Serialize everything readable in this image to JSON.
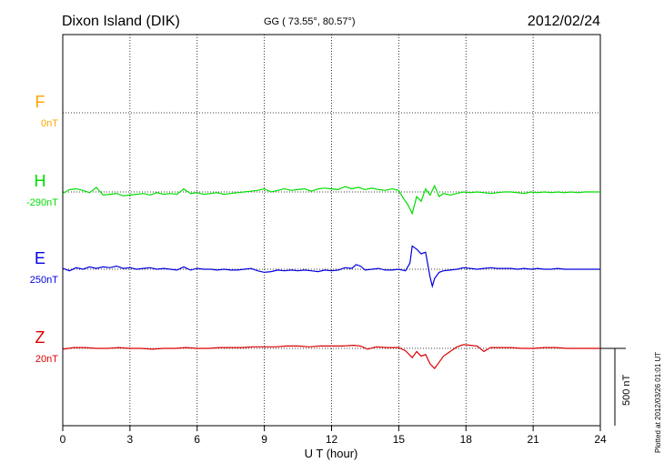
{
  "chart_data": {
    "type": "line",
    "title": "Dixon Island (DIK)",
    "coords": "GG ( 73.55°,  80.57°)",
    "date": "2012/02/24",
    "xlabel": "U T (hour)",
    "xlim": [
      0,
      24
    ],
    "xticks": [
      "0",
      "3",
      "6",
      "9",
      "12",
      "15",
      "18",
      "21",
      "24"
    ],
    "grid": true,
    "scale_label": "500 nT",
    "plotted_note": "Plotted at 2012/03/26 01:01 UT",
    "series": [
      {
        "name": "F",
        "offset_label": "0nT",
        "color": "#ffa500",
        "x": [],
        "y": []
      },
      {
        "name": "H",
        "offset_label": "-290nT",
        "color": "#00dd00",
        "x": [
          0,
          0.3,
          0.6,
          0.9,
          1.2,
          1.5,
          1.8,
          2.1,
          2.4,
          2.7,
          3.0,
          3.3,
          3.6,
          3.9,
          4.2,
          4.5,
          4.8,
          5.1,
          5.4,
          5.7,
          6.0,
          6.3,
          6.6,
          6.9,
          7.2,
          7.5,
          7.8,
          8.1,
          8.4,
          8.7,
          9.0,
          9.3,
          9.6,
          9.9,
          10.2,
          10.5,
          10.8,
          11.1,
          11.4,
          11.7,
          12.0,
          12.3,
          12.6,
          12.9,
          13.2,
          13.5,
          13.8,
          14.1,
          14.4,
          14.7,
          15.0,
          15.2,
          15.4,
          15.6,
          15.8,
          16.0,
          16.2,
          16.4,
          16.6,
          16.8,
          17.0,
          17.3,
          17.6,
          17.9,
          18.2,
          18.5,
          18.8,
          19.1,
          19.4,
          19.7,
          20.0,
          20.3,
          20.6,
          20.9,
          21.2,
          21.5,
          21.8,
          22.1,
          22.4,
          22.7,
          23.0,
          23.3,
          23.6,
          24.0
        ],
        "y": [
          -10,
          15,
          20,
          10,
          -5,
          30,
          -20,
          -15,
          -10,
          -25,
          -20,
          -15,
          -10,
          -20,
          -5,
          -15,
          -10,
          -15,
          20,
          -10,
          -5,
          -15,
          -10,
          -5,
          -15,
          -10,
          -5,
          0,
          5,
          10,
          20,
          0,
          10,
          20,
          10,
          15,
          20,
          5,
          20,
          25,
          20,
          15,
          35,
          20,
          30,
          15,
          25,
          15,
          10,
          20,
          10,
          -40,
          -80,
          -140,
          -30,
          -60,
          20,
          -20,
          40,
          -30,
          -10,
          -20,
          -10,
          0,
          -5,
          0,
          -5,
          -10,
          -5,
          0,
          0,
          -5,
          -10,
          0,
          -5,
          0,
          -5,
          0,
          -5,
          0,
          -5,
          0,
          0,
          0
        ]
      },
      {
        "name": "E",
        "offset_label": "250nT",
        "color": "#0000dd",
        "x": [
          0,
          0.3,
          0.6,
          0.9,
          1.2,
          1.5,
          1.8,
          2.1,
          2.4,
          2.7,
          3.0,
          3.3,
          3.6,
          3.9,
          4.2,
          4.5,
          4.8,
          5.1,
          5.4,
          5.7,
          6.0,
          6.3,
          6.6,
          6.9,
          7.2,
          7.5,
          7.8,
          8.1,
          8.4,
          8.7,
          9.0,
          9.3,
          9.6,
          9.9,
          10.2,
          10.5,
          10.8,
          11.1,
          11.4,
          11.7,
          12.0,
          12.3,
          12.6,
          12.9,
          13.1,
          13.3,
          13.5,
          13.8,
          14.1,
          14.4,
          14.7,
          15.0,
          15.3,
          15.5,
          15.6,
          15.8,
          16.0,
          16.2,
          16.4,
          16.5,
          16.6,
          16.8,
          17.0,
          17.3,
          17.6,
          17.9,
          18.2,
          18.5,
          18.8,
          19.1,
          19.4,
          19.7,
          20.0,
          20.3,
          20.6,
          20.9,
          21.2,
          21.5,
          21.8,
          22.1,
          22.4,
          22.7,
          23.0,
          23.3,
          23.6,
          24.0
        ],
        "y": [
          5,
          -10,
          10,
          0,
          15,
          5,
          15,
          10,
          20,
          5,
          10,
          0,
          5,
          10,
          0,
          5,
          0,
          -5,
          15,
          -5,
          5,
          0,
          0,
          -5,
          0,
          -5,
          -5,
          0,
          5,
          -10,
          -20,
          -15,
          -5,
          -10,
          -5,
          -10,
          -5,
          -10,
          -15,
          -5,
          -10,
          -5,
          10,
          5,
          30,
          20,
          -5,
          0,
          5,
          -5,
          -5,
          0,
          -10,
          40,
          150,
          130,
          100,
          110,
          -50,
          -110,
          -60,
          -20,
          -10,
          -5,
          0,
          10,
          5,
          0,
          5,
          10,
          5,
          5,
          5,
          0,
          5,
          0,
          5,
          0,
          0,
          5,
          0,
          0,
          0,
          0,
          0,
          0
        ]
      },
      {
        "name": "Z",
        "offset_label": "20nT",
        "color": "#dd0000",
        "x": [
          0,
          0.5,
          1.0,
          1.5,
          2.0,
          2.5,
          3.0,
          3.5,
          4.0,
          4.5,
          5.0,
          5.5,
          6.0,
          6.5,
          7.0,
          7.5,
          8.0,
          8.5,
          9.0,
          9.5,
          10.0,
          10.5,
          11.0,
          11.5,
          12.0,
          12.5,
          13.0,
          13.3,
          13.6,
          14.0,
          14.5,
          15.0,
          15.3,
          15.6,
          15.8,
          16.0,
          16.2,
          16.4,
          16.6,
          16.8,
          17.0,
          17.3,
          17.6,
          17.9,
          18.2,
          18.5,
          18.8,
          19.1,
          19.5,
          20.0,
          20.5,
          21.0,
          21.5,
          22.0,
          22.5,
          23.0,
          23.5,
          24.0
        ],
        "y": [
          -5,
          5,
          5,
          0,
          0,
          5,
          0,
          0,
          -5,
          0,
          0,
          5,
          0,
          0,
          5,
          5,
          5,
          10,
          10,
          10,
          15,
          15,
          10,
          15,
          15,
          15,
          20,
          15,
          -5,
          10,
          5,
          5,
          -15,
          -60,
          -20,
          -50,
          -40,
          -100,
          -130,
          -90,
          -50,
          -20,
          10,
          25,
          20,
          15,
          -20,
          5,
          5,
          5,
          0,
          0,
          5,
          5,
          0,
          0,
          0,
          0
        ]
      }
    ]
  }
}
